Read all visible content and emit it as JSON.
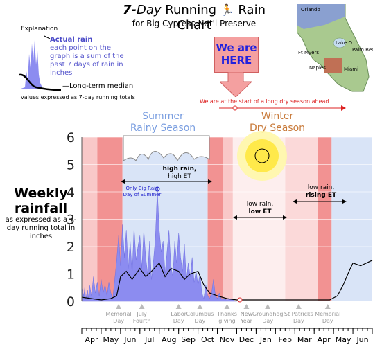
{
  "header": {
    "title_num": "7-",
    "title_day": "Day",
    "title_rest": " Running",
    "title_end": " Rain Chart",
    "subtitle": "for Big Cypress Nat'l Preserve"
  },
  "map": {
    "labels": [
      "Orlando",
      "Lake O",
      "Ft Myers",
      "Palm Beach",
      "Naples",
      "Miami"
    ]
  },
  "explanation": {
    "heading": "Explanation",
    "actual_rain_label": "Actual rain",
    "actual_rain_text": "each point on the graph is a sum of the past 7 days of rain in inches",
    "median_label": "Long-term median",
    "footer": "values expressed as 7-day running totals"
  },
  "here_box": {
    "line1": "We are",
    "line2": "HERE"
  },
  "dry_note": "We are at the start of a long dry season ahead",
  "seasons": {
    "summer_line1": "Summer",
    "summer_line2": "Rainy  Season",
    "winter_line1": "Winter",
    "winter_line2": "Dry Season"
  },
  "y_axis": {
    "line1": "Weekly",
    "line2": "rainfall",
    "line3": "as expressed as a 7-day running total in inches"
  },
  "annotations": {
    "high_rain": "high rain,",
    "high_et": "high ET",
    "low_rain": "low rain,",
    "low_et": "low ET",
    "low_rain2": "low rain,",
    "rising_et": "rising ET",
    "only_big_rain": "Only Big Rain Day of Summer"
  },
  "holidays": [
    {
      "line1": "Memorial",
      "line2": "Day"
    },
    {
      "line1": "July",
      "line2": "Fourth"
    },
    {
      "line1": "Labor",
      "line2": "Day"
    },
    {
      "line1": "Columbus",
      "line2": "Day"
    },
    {
      "line1": "Thanks",
      "line2": "giving"
    },
    {
      "line1": "New",
      "line2": "Year"
    },
    {
      "line1": "Groundhog",
      "line2": "Day"
    },
    {
      "line1": "St Patricks",
      "line2": "Day"
    },
    {
      "line1": "Memorial",
      "line2": "Day"
    }
  ],
  "chart_data": {
    "type": "area",
    "title": "7-Day Running Rain Chart",
    "ylabel": "Weekly rainfall",
    "ylim": [
      0,
      6
    ],
    "y_ticks": [
      0,
      1,
      2,
      3,
      4,
      5,
      6
    ],
    "x_tick_labels": [
      "Apr",
      "May",
      "Jun",
      "Jul",
      "Aug",
      "Sep",
      "Oct",
      "Nov",
      "Dec",
      "Jan",
      "Feb",
      "Mar",
      "Apr",
      "May",
      "Jun"
    ],
    "x_unit": "months since April 1",
    "series": [
      {
        "name": "Actual rain",
        "color": "#8c8cf0",
        "x": [
          0.0,
          0.1,
          0.15,
          0.2,
          0.3,
          0.35,
          0.4,
          0.5,
          0.6,
          0.7,
          0.8,
          0.9,
          1.0,
          1.1,
          1.2,
          1.3,
          1.4,
          1.5,
          1.6,
          1.7,
          1.8,
          1.9,
          2.0,
          2.1,
          2.2,
          2.3,
          2.4,
          2.5,
          2.6,
          2.7,
          2.8,
          2.9,
          3.0,
          3.1,
          3.2,
          3.3,
          3.4,
          3.5,
          3.6,
          3.7,
          3.8,
          3.9,
          4.0,
          4.1,
          4.2,
          4.3,
          4.4,
          4.5,
          4.6,
          4.7,
          4.8,
          4.9,
          5.0,
          5.1,
          5.2,
          5.3,
          5.4,
          5.5,
          5.6,
          5.7,
          5.8,
          5.9,
          6.0,
          6.1,
          6.2,
          6.3,
          6.4,
          6.5,
          6.6,
          6.7,
          6.8,
          6.9,
          7.0,
          7.1,
          7.2,
          7.3,
          7.5,
          7.7,
          7.9,
          8.0
        ],
        "values": [
          0.5,
          0.2,
          0.5,
          0.1,
          0.4,
          0.1,
          0.6,
          0.2,
          0.9,
          0.3,
          0.7,
          0.2,
          0.8,
          0.3,
          0.6,
          0.2,
          0.7,
          0.3,
          0.1,
          0.8,
          1.5,
          2.4,
          1.3,
          2.8,
          1.6,
          2.6,
          1.2,
          2.2,
          1.0,
          2.7,
          1.5,
          2.0,
          2.4,
          1.2,
          2.6,
          1.6,
          1.0,
          2.2,
          0.8,
          1.5,
          2.3,
          4.1,
          2.6,
          1.8,
          2.2,
          1.0,
          1.8,
          2.6,
          1.3,
          0.9,
          2.2,
          1.4,
          2.5,
          1.6,
          1.1,
          2.1,
          0.8,
          1.4,
          0.9,
          1.6,
          0.7,
          1.1,
          0.6,
          1.0,
          0.3,
          0.1,
          0.6,
          0.2,
          0.1,
          0.3,
          0.8,
          0.2,
          0.1,
          0.3,
          0.1,
          0.1,
          0.05,
          0.1,
          0.02,
          0.0
        ]
      },
      {
        "name": "Long-term median",
        "color": "#000000",
        "x": [
          0.0,
          0.5,
          1.0,
          1.5,
          1.8,
          2.0,
          2.3,
          2.6,
          3.0,
          3.3,
          3.6,
          4.0,
          4.3,
          4.6,
          5.0,
          5.3,
          5.6,
          6.0,
          6.3,
          6.6,
          7.0,
          7.5,
          8.0,
          9.0,
          10.0,
          11.0,
          12.0,
          12.8,
          13.2,
          13.5,
          13.8,
          14.0,
          14.4,
          15.0
        ],
        "values": [
          0.15,
          0.1,
          0.05,
          0.1,
          0.2,
          0.9,
          1.1,
          0.8,
          1.2,
          0.9,
          1.1,
          1.4,
          0.9,
          1.2,
          1.1,
          0.8,
          1.0,
          1.1,
          0.6,
          0.3,
          0.2,
          0.1,
          0.05,
          0.05,
          0.05,
          0.05,
          0.05,
          0.05,
          0.2,
          0.6,
          1.1,
          1.4,
          1.3,
          1.5
        ]
      }
    ]
  }
}
